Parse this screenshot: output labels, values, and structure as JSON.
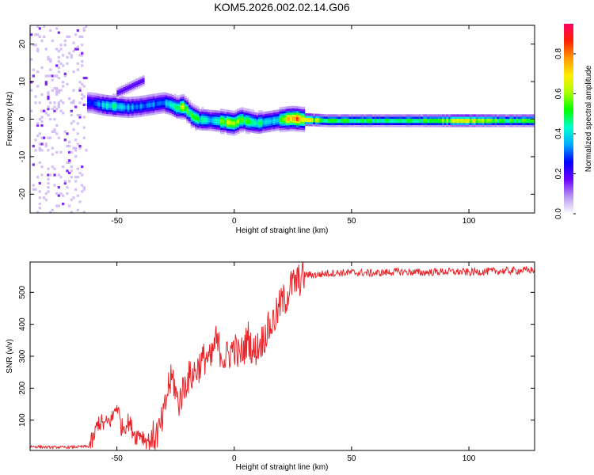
{
  "figure_title": "KOM5.2026.002.02.14.G06",
  "colors": {
    "snr_line": "#e8262b",
    "frame": "#000000",
    "colorbar_stops": [
      "#ffffff",
      "#b896f2",
      "#6a00ff",
      "#0000ff",
      "#00aaff",
      "#00ffcc",
      "#00ff00",
      "#aaff00",
      "#ffee00",
      "#ff9900",
      "#ff2200",
      "#ff0066"
    ]
  },
  "chart_data": [
    {
      "type": "heatmap",
      "title": "",
      "xlabel": "Height of straight line (km)",
      "ylabel": "Frequency (Hz)",
      "xlim": [
        -87,
        128
      ],
      "ylim": [
        -25,
        25
      ],
      "xticks": [
        -50,
        0,
        50,
        100
      ],
      "yticks": [
        -20,
        -10,
        0,
        10,
        20
      ],
      "colorbar": {
        "label": "Normalized spectral amplitude",
        "range": [
          0,
          0.95
        ],
        "ticks": [
          0.0,
          0.2,
          0.4,
          0.6,
          0.8
        ]
      },
      "ridge_center_hz": [
        [
          -61,
          4.5
        ],
        [
          -55,
          3.8
        ],
        [
          -50,
          3.5
        ],
        [
          -45,
          3.2
        ],
        [
          -40,
          3.5
        ],
        [
          -35,
          4.0
        ],
        [
          -30,
          4.5
        ],
        [
          -27,
          4.0
        ],
        [
          -24,
          3.0
        ],
        [
          -22,
          3.5
        ],
        [
          -20,
          2.5
        ],
        [
          -18,
          1.0
        ],
        [
          -15,
          0.0
        ],
        [
          -10,
          -0.2
        ],
        [
          -5,
          -0.5
        ],
        [
          0,
          -1.0
        ],
        [
          3,
          0.0
        ],
        [
          6,
          -0.5
        ],
        [
          10,
          -1.0
        ],
        [
          15,
          -0.5
        ],
        [
          20,
          0.0
        ],
        [
          25,
          0.3
        ],
        [
          30,
          0.0
        ],
        [
          40,
          -0.3
        ],
        [
          60,
          -0.3
        ],
        [
          80,
          -0.3
        ],
        [
          100,
          -0.3
        ],
        [
          128,
          -0.3
        ]
      ],
      "ridge_peak_amplitude": [
        [
          -61,
          0.25
        ],
        [
          -52,
          0.45
        ],
        [
          -45,
          0.35
        ],
        [
          -38,
          0.3
        ],
        [
          -30,
          0.35
        ],
        [
          -22,
          0.6
        ],
        [
          -10,
          0.35
        ],
        [
          -2,
          0.65
        ],
        [
          8,
          0.45
        ],
        [
          18,
          0.4
        ],
        [
          25,
          0.8
        ],
        [
          30,
          0.7
        ],
        [
          40,
          0.5
        ],
        [
          60,
          0.5
        ],
        [
          80,
          0.5
        ],
        [
          100,
          0.7
        ],
        [
          115,
          0.5
        ],
        [
          128,
          0.6
        ]
      ]
    },
    {
      "type": "line",
      "title": "",
      "xlabel": "Height of straight line (km)",
      "ylabel": "SNR (v/v)",
      "xlim": [
        -87,
        128
      ],
      "ylim": [
        5,
        595
      ],
      "xticks": [
        -50,
        0,
        50,
        100
      ],
      "yticks": [
        100,
        200,
        300,
        400,
        500
      ],
      "series": [
        {
          "x": [
            -87,
            -80,
            -70,
            -62,
            -60,
            -58,
            -55,
            -52,
            -50,
            -48,
            -45,
            -42,
            -40,
            -38,
            -36,
            -34,
            -32,
            -30,
            -28,
            -26,
            -24,
            -22,
            -20,
            -18,
            -16,
            -14,
            -12,
            -10,
            -8,
            -6,
            -4,
            -2,
            0,
            2,
            4,
            6,
            8,
            10,
            12,
            14,
            16,
            18,
            20,
            22,
            24,
            26,
            28,
            30,
            35,
            40,
            50,
            60,
            70,
            80,
            90,
            100,
            110,
            120,
            128
          ],
          "y": [
            18,
            15,
            15,
            18,
            40,
            95,
            85,
            105,
            150,
            75,
            95,
            50,
            60,
            40,
            35,
            50,
            65,
            110,
            210,
            230,
            150,
            190,
            230,
            240,
            260,
            280,
            300,
            280,
            350,
            320,
            290,
            310,
            330,
            300,
            320,
            360,
            310,
            330,
            350,
            380,
            400,
            430,
            470,
            480,
            520,
            530,
            540,
            555,
            555,
            560,
            562,
            560,
            565,
            562,
            565,
            563,
            566,
            568,
            570
          ]
        }
      ]
    }
  ]
}
